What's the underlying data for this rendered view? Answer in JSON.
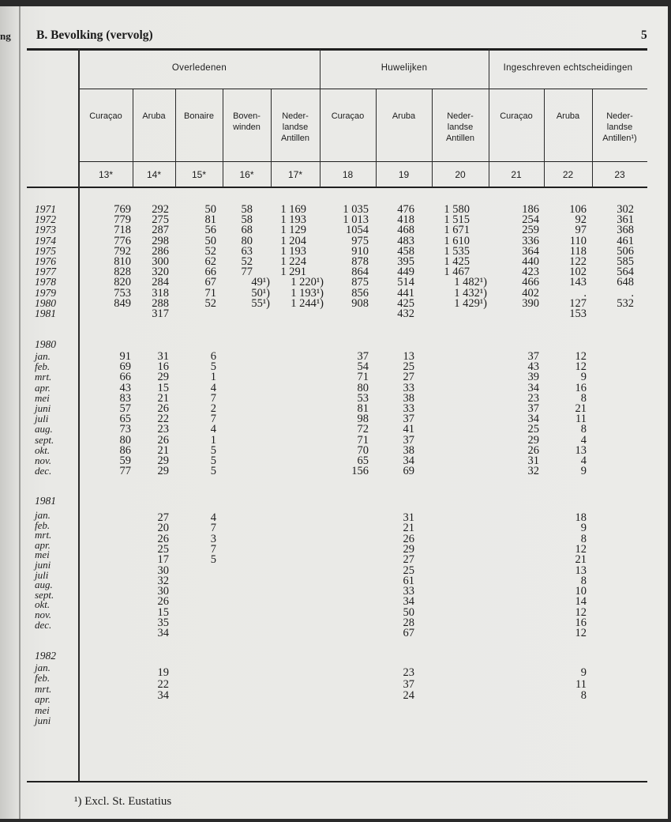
{
  "margin_fragment": "ng",
  "section_title": "B. Bevolking (vervolg)",
  "page_number": "5",
  "groups": [
    "Overledenen",
    "Huwelijken",
    "Ingeschreven echtscheidingen"
  ],
  "columns": [
    {
      "label": "Curaçao",
      "number": "13*"
    },
    {
      "label": "Aruba",
      "number": "14*"
    },
    {
      "label": "Bonaire",
      "number": "15*"
    },
    {
      "label": "Boven-\nwinden",
      "number": "16*"
    },
    {
      "label": "Neder-\nlandse\nAntillen",
      "number": "17*"
    },
    {
      "label": "Curaçao",
      "number": "18"
    },
    {
      "label": "Aruba",
      "number": "19"
    },
    {
      "label": "Neder-\nlandse\nAntillen",
      "number": "20"
    },
    {
      "label": "Curaçao",
      "number": "21"
    },
    {
      "label": "Aruba",
      "number": "22"
    },
    {
      "label": "Neder-\nlandse\nAntillen¹)",
      "number": "23"
    }
  ],
  "annual": [
    {
      "label": "1971",
      "values": [
        "769",
        "292",
        "50",
        "58",
        "1 169",
        "1 035",
        "476",
        "1 580",
        "186",
        "106",
        "302"
      ]
    },
    {
      "label": "1972",
      "values": [
        "779",
        "275",
        "81",
        "58",
        "1 193",
        "1 013",
        "418",
        "1 515",
        "254",
        "92",
        "361"
      ]
    },
    {
      "label": "1973",
      "values": [
        "718",
        "287",
        "56",
        "68",
        "1 129",
        "1054",
        "468",
        "1 671",
        "259",
        "97",
        "368"
      ]
    },
    {
      "label": "1974",
      "values": [
        "776",
        "298",
        "50",
        "80",
        "1 204",
        "975",
        "483",
        "1 610",
        "336",
        "110",
        "461"
      ]
    },
    {
      "label": "1975",
      "values": [
        "792",
        "286",
        "52",
        "63",
        "1 193",
        "910",
        "458",
        "1 535",
        "364",
        "118",
        "506"
      ]
    },
    {
      "label": "1976",
      "values": [
        "810",
        "300",
        "62",
        "52",
        "1 224",
        "878",
        "395",
        "1 425",
        "440",
        "122",
        "585"
      ]
    },
    {
      "label": "1977",
      "values": [
        "828",
        "320",
        "66",
        "77",
        "1 291",
        "864",
        "449",
        "1 467",
        "423",
        "102",
        "564"
      ]
    },
    {
      "label": "1978",
      "values": [
        "820",
        "284",
        "67",
        "49¹)",
        "1 220¹)",
        "875",
        "514",
        "1 482¹)",
        "466",
        "143",
        "648"
      ]
    },
    {
      "label": "1979",
      "values": [
        "753",
        "318",
        "71",
        "50¹)",
        "1 193¹)",
        "856",
        "441",
        "1 432¹)",
        "402",
        ".",
        "."
      ]
    },
    {
      "label": "1980",
      "values": [
        "849",
        "288",
        "52",
        "55¹)",
        "1 244¹)",
        "908",
        "425",
        "1 429¹)",
        "390",
        "127",
        "532"
      ]
    },
    {
      "label": "1981",
      "values": [
        "",
        "317",
        "",
        "",
        "",
        "",
        "432",
        "",
        "",
        "153",
        ""
      ]
    }
  ],
  "monthly": [
    {
      "year": "1980",
      "months": [
        "jan.",
        "feb.",
        "mrt.",
        "apr.",
        "mei",
        "juni",
        "juli",
        "aug.",
        "sept.",
        "okt.",
        "nov.",
        "dec."
      ],
      "rows": [
        [
          "91",
          "31",
          "6",
          "",
          "",
          "37",
          "13",
          "",
          "37",
          "12",
          ""
        ],
        [
          "69",
          "16",
          "5",
          "",
          "",
          "54",
          "25",
          "",
          "43",
          "12",
          ""
        ],
        [
          "66",
          "29",
          "1",
          "",
          "",
          "71",
          "27",
          "",
          "39",
          "9",
          ""
        ],
        [
          "43",
          "15",
          "4",
          "",
          "",
          "80",
          "33",
          "",
          "34",
          "16",
          ""
        ],
        [
          "83",
          "21",
          "7",
          "",
          "",
          "53",
          "38",
          "",
          "23",
          "8",
          ""
        ],
        [
          "57",
          "26",
          "2",
          "",
          "",
          "81",
          "33",
          "",
          "37",
          "21",
          ""
        ],
        [
          "65",
          "22",
          "7",
          "",
          "",
          "98",
          "37",
          "",
          "34",
          "11",
          ""
        ],
        [
          "73",
          "23",
          "4",
          "",
          "",
          "72",
          "41",
          "",
          "25",
          "8",
          ""
        ],
        [
          "80",
          "26",
          "1",
          "",
          "",
          "71",
          "37",
          "",
          "29",
          "4",
          ""
        ],
        [
          "86",
          "21",
          "5",
          "",
          "",
          "70",
          "38",
          "",
          "26",
          "13",
          ""
        ],
        [
          "59",
          "29",
          "5",
          "",
          "",
          "65",
          "34",
          "",
          "31",
          "4",
          ""
        ],
        [
          "77",
          "29",
          "5",
          "",
          "",
          "156",
          "69",
          "",
          "32",
          "9",
          ""
        ]
      ]
    },
    {
      "year": "1981",
      "months": [
        "jan.",
        "feb.",
        "mrt.",
        "apr.",
        "mei",
        "juni",
        "juli",
        "aug.",
        "sept.",
        "okt.",
        "nov.",
        "dec."
      ],
      "rows": [
        [
          "",
          "27",
          "4",
          "",
          "",
          "",
          "31",
          "",
          "",
          "18",
          ""
        ],
        [
          "",
          "20",
          "7",
          "",
          "",
          "",
          "21",
          "",
          "",
          "9",
          ""
        ],
        [
          "",
          "26",
          "3",
          "",
          "",
          "",
          "26",
          "",
          "",
          "8",
          ""
        ],
        [
          "",
          "25",
          "7",
          "",
          "",
          "",
          "29",
          "",
          "",
          "12",
          ""
        ],
        [
          "",
          "17",
          "5",
          "",
          "",
          "",
          "27",
          "",
          "",
          "21",
          ""
        ],
        [
          "",
          "30",
          "",
          "",
          "",
          "",
          "25",
          "",
          "",
          "13",
          ""
        ],
        [
          "",
          "32",
          "",
          "",
          "",
          "",
          "61",
          "",
          "",
          "8",
          ""
        ],
        [
          "",
          "30",
          "",
          "",
          "",
          "",
          "33",
          "",
          "",
          "10",
          ""
        ],
        [
          "",
          "26",
          "",
          "",
          "",
          "",
          "34",
          "",
          "",
          "14",
          ""
        ],
        [
          "",
          "15",
          "",
          "",
          "",
          "",
          "50",
          "",
          "",
          "12",
          ""
        ],
        [
          "",
          "35",
          "",
          "",
          "",
          "",
          "28",
          "",
          "",
          "16",
          ""
        ],
        [
          "",
          "34",
          "",
          "",
          "",
          "",
          "67",
          "",
          "",
          "12",
          ""
        ]
      ]
    },
    {
      "year": "1982",
      "months": [
        "jan.",
        "feb.",
        "mrt.",
        "apr.",
        "mei",
        "juni"
      ],
      "rows": [
        [
          "",
          "19",
          "",
          "",
          "",
          "",
          "23",
          "",
          "",
          "9",
          ""
        ],
        [
          "",
          "22",
          "",
          "",
          "",
          "",
          "37",
          "",
          "",
          "11",
          ""
        ],
        [
          "",
          "34",
          "",
          "",
          "",
          "",
          "24",
          "",
          "",
          "8",
          ""
        ]
      ]
    }
  ],
  "footnote": "¹) Excl. St. Eustatius"
}
